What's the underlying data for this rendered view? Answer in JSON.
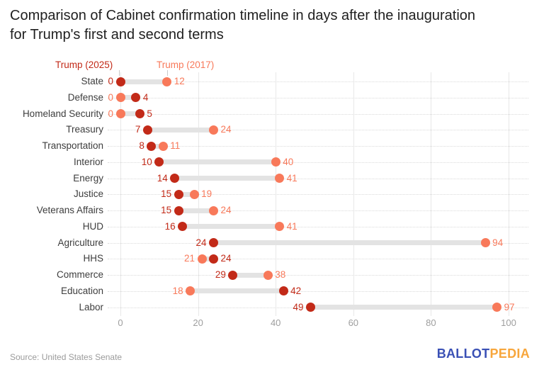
{
  "title_lines": [
    "Comparison of Cabinet confirmation timeline in days after the inauguration",
    "for Trump's first and second terms"
  ],
  "legend": {
    "trump_2025": {
      "label": "Trump (2025)",
      "color": "#c22a18"
    },
    "trump_2017": {
      "label": "Trump (2017)",
      "color": "#f8795a"
    }
  },
  "chart_data": {
    "type": "dumbbell",
    "title": "Comparison of Cabinet confirmation timeline in days after the inauguration for Trump's first and second terms",
    "categories": [
      "State",
      "Defense",
      "Homeland Security",
      "Treasury",
      "Transportation",
      "Interior",
      "Energy",
      "Justice",
      "Veterans Affairs",
      "HUD",
      "Agriculture",
      "HHS",
      "Commerce",
      "Education",
      "Labor"
    ],
    "series": [
      {
        "name": "Trump (2025)",
        "color": "#c22a18",
        "values": [
          0,
          4,
          5,
          7,
          8,
          10,
          14,
          15,
          15,
          16,
          24,
          24,
          29,
          42,
          49
        ]
      },
      {
        "name": "Trump (2017)",
        "color": "#f8795a",
        "values": [
          12,
          0,
          0,
          24,
          11,
          40,
          41,
          19,
          24,
          41,
          94,
          21,
          38,
          18,
          97
        ]
      }
    ],
    "xlabel": "",
    "ylabel": "",
    "xticks": [
      0,
      20,
      40,
      60,
      80,
      100
    ],
    "xlim": [
      0,
      100
    ],
    "grid": "vertical solid gridlines at ticks, dotted horizontal row guides",
    "legend_position": "top-left above first row",
    "colors": {
      "bar": "#e3e3e3",
      "gridline": "#e8e8e8",
      "row_guide": "#dadada",
      "category_text": "#3d3d3d",
      "tick_text": "#9e9e9e"
    }
  },
  "footer": {
    "source": "Source: United States Senate",
    "logo": {
      "part1": "BALLOT",
      "part2": "PEDIA",
      "color1": "#3a50b5",
      "color2": "#f7a63c"
    }
  }
}
